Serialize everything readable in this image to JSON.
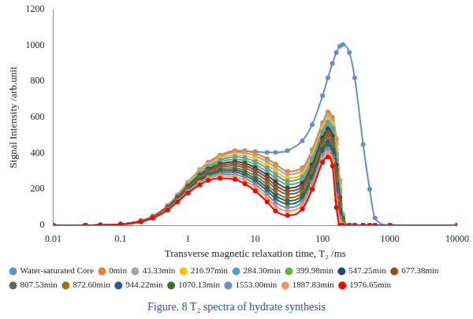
{
  "chart_data": {
    "type": "line",
    "title": "Figure. 8 T₂ spectra of hydrate synthesis",
    "x_label": "Transverse magnetic relaxation time, T₂ /ms",
    "y_label": "Signal Intensity /arb.unit",
    "log": "x",
    "grid": false,
    "legend": "bottom",
    "marker": "circle",
    "xlim": [
      0.01,
      10000
    ],
    "xticks": [
      0.01,
      0.1,
      1,
      10,
      100,
      1000,
      10000
    ],
    "ylim": [
      0,
      1200
    ],
    "yticks": [
      0,
      200,
      400,
      600,
      800,
      1000,
      1200
    ],
    "x": [
      0.01,
      0.03,
      0.05,
      0.1,
      0.2,
      0.3,
      0.5,
      0.7,
      1,
      1.5,
      2,
      3,
      5,
      7,
      10,
      15,
      20,
      30,
      50,
      70,
      100,
      120,
      140,
      160,
      180,
      200,
      250,
      300,
      400,
      500,
      600,
      1000,
      10000
    ],
    "series": [
      {
        "name": "Water-saturated Core",
        "color": "#6a8fc7",
        "values": [
          0,
          0,
          1,
          5,
          25,
          50,
          105,
          165,
          235,
          305,
          345,
          385,
          408,
          412,
          410,
          405,
          405,
          415,
          470,
          560,
          720,
          820,
          900,
          960,
          995,
          1005,
          960,
          820,
          450,
          200,
          40,
          0,
          0
        ]
      },
      {
        "name": "0min",
        "color": "#ed7d31",
        "values": [
          0,
          0,
          1,
          5,
          25,
          50,
          110,
          170,
          240,
          310,
          350,
          390,
          415,
          415,
          400,
          370,
          340,
          300,
          320,
          420,
          570,
          630,
          600,
          480,
          250,
          60,
          0,
          0,
          0,
          0,
          0,
          0,
          0
        ]
      },
      {
        "name": "43.33min",
        "color": "#a5a5a5",
        "values": [
          0,
          0,
          1,
          5,
          25,
          49,
          108,
          167,
          236,
          304,
          343,
          381,
          404,
          402,
          385,
          353,
          322,
          283,
          304,
          405,
          555,
          613,
          581,
          453,
          233,
          56,
          0,
          0,
          0,
          0,
          0,
          0,
          0
        ]
      },
      {
        "name": "216.97min",
        "color": "#ffc000",
        "values": [
          0,
          0,
          1,
          5,
          24,
          48,
          106,
          164,
          231,
          297,
          335,
          371,
          391,
          387,
          369,
          334,
          301,
          263,
          286,
          387,
          537,
          593,
          560,
          423,
          213,
          51,
          0,
          0,
          0,
          0,
          0,
          0,
          0
        ]
      },
      {
        "name": "284.30min",
        "color": "#5b9bd5",
        "values": [
          0,
          0,
          1,
          5,
          24,
          48,
          105,
          161,
          227,
          291,
          328,
          362,
          380,
          374,
          354,
          317,
          283,
          246,
          269,
          372,
          522,
          575,
          541,
          396,
          195,
          47,
          0,
          0,
          0,
          0,
          0,
          0,
          0
        ]
      },
      {
        "name": "399.98min",
        "color": "#70ad47",
        "values": [
          0,
          0,
          1,
          5,
          24,
          47,
          103,
          158,
          222,
          285,
          320,
          352,
          367,
          360,
          337,
          298,
          262,
          227,
          251,
          354,
          504,
          555,
          519,
          366,
          175,
          42,
          0,
          0,
          0,
          0,
          0,
          0,
          0
        ]
      },
      {
        "name": "547.25min",
        "color": "#264478",
        "values": [
          0,
          0,
          1,
          5,
          23,
          46,
          101,
          155,
          217,
          278,
          312,
          341,
          354,
          345,
          320,
          279,
          241,
          207,
          233,
          336,
          486,
          535,
          497,
          336,
          155,
          37,
          0,
          0,
          0,
          0,
          0,
          0,
          0
        ]
      },
      {
        "name": "677.38min",
        "color": "#9e480e",
        "values": [
          0,
          0,
          1,
          5,
          23,
          46,
          99,
          152,
          213,
          272,
          305,
          332,
          343,
          332,
          306,
          262,
          223,
          190,
          217,
          321,
          471,
          518,
          479,
          309,
          138,
          33,
          0,
          0,
          0,
          0,
          0,
          0,
          0
        ]
      },
      {
        "name": "807.53min",
        "color": "#636363",
        "values": [
          0,
          0,
          1,
          5,
          22,
          45,
          97,
          149,
          209,
          266,
          298,
          323,
          332,
          319,
          291,
          245,
          205,
          173,
          200,
          306,
          456,
          500,
          460,
          282,
          120,
          29,
          0,
          0,
          0,
          0,
          0,
          0,
          0
        ]
      },
      {
        "name": "872.60min",
        "color": "#997300",
        "values": [
          0,
          0,
          1,
          5,
          22,
          44,
          95,
          146,
          204,
          259,
          290,
          313,
          319,
          304,
          274,
          226,
          184,
          153,
          182,
          288,
          438,
          480,
          438,
          252,
          100,
          24,
          0,
          0,
          0,
          0,
          0,
          0,
          0
        ]
      },
      {
        "name": "944.22min",
        "color": "#255e91",
        "values": [
          0,
          0,
          1,
          5,
          22,
          43,
          93,
          143,
          200,
          253,
          283,
          304,
          308,
          291,
          259,
          209,
          166,
          136,
          166,
          273,
          423,
          463,
          419,
          225,
          83,
          20,
          0,
          0,
          0,
          0,
          0,
          0,
          0
        ]
      },
      {
        "name": "1070.13min",
        "color": "#43682b",
        "values": [
          0,
          0,
          1,
          5,
          21,
          43,
          92,
          140,
          196,
          247,
          276,
          295,
          297,
          278,
          245,
          192,
          148,
          119,
          150,
          257,
          407,
          445,
          400,
          199,
          65,
          16,
          0,
          0,
          0,
          0,
          0,
          0,
          0
        ]
      },
      {
        "name": "1553.00min",
        "color": "#698ed0",
        "values": [
          0,
          0,
          1,
          5,
          21,
          42,
          90,
          137,
          191,
          240,
          268,
          285,
          284,
          263,
          228,
          173,
          127,
          99,
          131,
          240,
          390,
          425,
          379,
          168,
          45,
          11,
          0,
          0,
          0,
          0,
          0,
          0,
          0
        ]
      },
      {
        "name": "1887.83min",
        "color": "#f1975a",
        "values": [
          0,
          0,
          1,
          5,
          20,
          41,
          88,
          134,
          186,
          234,
          260,
          275,
          271,
          248,
          211,
          154,
          106,
          80,
          113,
          222,
          372,
          405,
          357,
          138,
          25,
          6,
          0,
          0,
          0,
          0,
          0,
          0,
          0
        ]
      },
      {
        "name": "1976.65min",
        "color": "#ff0000",
        "values": [
          0,
          0,
          1,
          5,
          20,
          40,
          85,
          130,
          180,
          225,
          250,
          262,
          255,
          230,
          190,
          130,
          80,
          55,
          90,
          200,
          350,
          380,
          330,
          100,
          0,
          0,
          0,
          0,
          0,
          0,
          0,
          0,
          0
        ]
      }
    ]
  }
}
